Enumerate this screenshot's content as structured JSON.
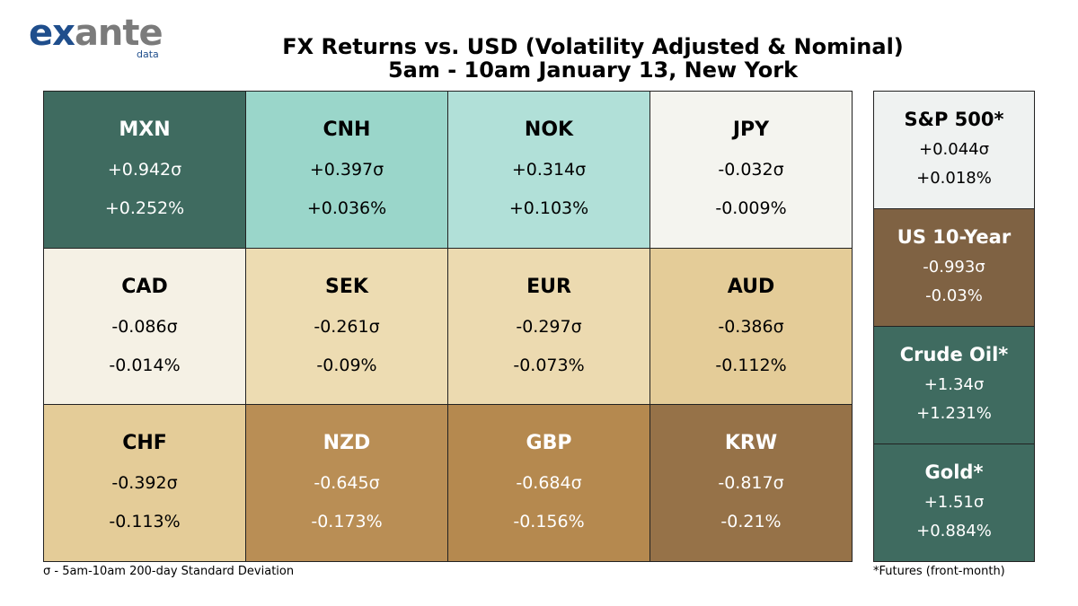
{
  "logo": {
    "word": "exante",
    "sub": "data",
    "ex_color": "#1f4e8c",
    "ante_color": "#7b7b7b"
  },
  "title": {
    "line1": "FX Returns vs. USD (Volatility Adjusted & Nominal)",
    "line2": "5am - 10am January 13, New York"
  },
  "chart_data": {
    "type": "heatmap",
    "title": "FX Returns vs. USD (Volatility Adjusted & Nominal)",
    "subtitle": "5am - 10am January 13, New York",
    "currencies": [
      {
        "code": "MXN",
        "sigma": "+0.942σ",
        "pct": "+0.252%",
        "sigma_value": 0.942,
        "pct_value": 0.252,
        "bg": "#3f6b60",
        "fg": "#ffffff"
      },
      {
        "code": "CNH",
        "sigma": "+0.397σ",
        "pct": "+0.036%",
        "sigma_value": 0.397,
        "pct_value": 0.036,
        "bg": "#9ad6ca",
        "fg": "#000000"
      },
      {
        "code": "NOK",
        "sigma": "+0.314σ",
        "pct": "+0.103%",
        "sigma_value": 0.314,
        "pct_value": 0.103,
        "bg": "#b1e0d8",
        "fg": "#000000"
      },
      {
        "code": "JPY",
        "sigma": "-0.032σ",
        "pct": "-0.009%",
        "sigma_value": -0.032,
        "pct_value": -0.009,
        "bg": "#f4f4ef",
        "fg": "#000000"
      },
      {
        "code": "CAD",
        "sigma": "-0.086σ",
        "pct": "-0.014%",
        "sigma_value": -0.086,
        "pct_value": -0.014,
        "bg": "#f5f1e5",
        "fg": "#000000"
      },
      {
        "code": "SEK",
        "sigma": "-0.261σ",
        "pct": "-0.09%",
        "sigma_value": -0.261,
        "pct_value": -0.09,
        "bg": "#eddcb2",
        "fg": "#000000"
      },
      {
        "code": "EUR",
        "sigma": "-0.297σ",
        "pct": "-0.073%",
        "sigma_value": -0.297,
        "pct_value": -0.073,
        "bg": "#ecdab0",
        "fg": "#000000"
      },
      {
        "code": "AUD",
        "sigma": "-0.386σ",
        "pct": "-0.112%",
        "sigma_value": -0.386,
        "pct_value": -0.112,
        "bg": "#e4cc98",
        "fg": "#000000"
      },
      {
        "code": "CHF",
        "sigma": "-0.392σ",
        "pct": "-0.113%",
        "sigma_value": -0.392,
        "pct_value": -0.113,
        "bg": "#e4cc98",
        "fg": "#000000"
      },
      {
        "code": "NZD",
        "sigma": "-0.645σ",
        "pct": "-0.173%",
        "sigma_value": -0.645,
        "pct_value": -0.173,
        "bg": "#b98e55",
        "fg": "#ffffff"
      },
      {
        "code": "GBP",
        "sigma": "-0.684σ",
        "pct": "-0.156%",
        "sigma_value": -0.684,
        "pct_value": -0.156,
        "bg": "#b5894f",
        "fg": "#ffffff"
      },
      {
        "code": "KRW",
        "sigma": "-0.817σ",
        "pct": "-0.21%",
        "sigma_value": -0.817,
        "pct_value": -0.21,
        "bg": "#967248",
        "fg": "#ffffff"
      }
    ],
    "assets": [
      {
        "code": "S&P 500*",
        "sigma": "+0.044σ",
        "pct": "+0.018%",
        "sigma_value": 0.044,
        "pct_value": 0.018,
        "bg": "#eff2f1",
        "fg": "#000000"
      },
      {
        "code": "US 10-Year",
        "sigma": "-0.993σ",
        "pct": "-0.03%",
        "sigma_value": -0.993,
        "pct_value": -0.03,
        "bg": "#7f6243",
        "fg": "#ffffff"
      },
      {
        "code": "Crude Oil*",
        "sigma": "+1.34σ",
        "pct": "+1.231%",
        "sigma_value": 1.34,
        "pct_value": 1.231,
        "bg": "#3f6b60",
        "fg": "#ffffff"
      },
      {
        "code": "Gold*",
        "sigma": "+1.51σ",
        "pct": "+0.884%",
        "sigma_value": 1.51,
        "pct_value": 0.884,
        "bg": "#3f6b60",
        "fg": "#ffffff"
      }
    ]
  },
  "footnotes": {
    "sigma": "σ - 5am-10am 200-day Standard Deviation",
    "futures": "*Futures (front-month)"
  }
}
